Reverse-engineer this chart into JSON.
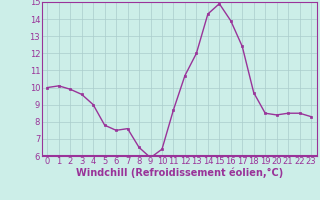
{
  "hours": [
    0,
    1,
    2,
    3,
    4,
    5,
    6,
    7,
    8,
    9,
    10,
    11,
    12,
    13,
    14,
    15,
    16,
    17,
    18,
    19,
    20,
    21,
    22,
    23
  ],
  "values": [
    10.0,
    10.1,
    9.9,
    9.6,
    9.0,
    7.8,
    7.5,
    7.6,
    6.5,
    5.9,
    6.4,
    8.7,
    10.7,
    12.0,
    14.3,
    14.9,
    13.9,
    12.4,
    9.7,
    8.5,
    8.4,
    8.5,
    8.5,
    8.3
  ],
  "line_color": "#993399",
  "marker": "s",
  "marker_size": 2.0,
  "background_color": "#cceee8",
  "grid_color": "#aacccc",
  "xlabel": "Windchill (Refroidissement éolien,°C)",
  "xlim": [
    -0.5,
    23.5
  ],
  "ylim": [
    6,
    15
  ],
  "yticks": [
    6,
    7,
    8,
    9,
    10,
    11,
    12,
    13,
    14,
    15
  ],
  "xticks": [
    0,
    1,
    2,
    3,
    4,
    5,
    6,
    7,
    8,
    9,
    10,
    11,
    12,
    13,
    14,
    15,
    16,
    17,
    18,
    19,
    20,
    21,
    22,
    23
  ],
  "tick_label_fontsize": 6.0,
  "xlabel_fontsize": 7.0,
  "line_width": 1.0,
  "spine_color": "#993399"
}
